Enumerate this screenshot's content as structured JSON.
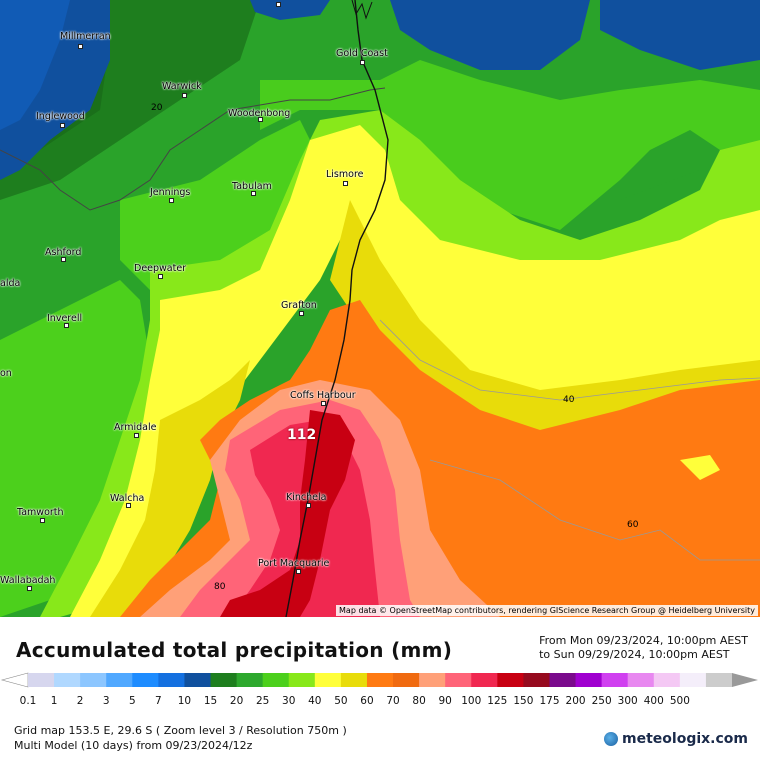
{
  "map": {
    "towns": [
      {
        "name": "Millmerran"
      },
      {
        "name": "Gold Coast"
      },
      {
        "name": "Warwick"
      },
      {
        "name": "Inglewood"
      },
      {
        "name": "Woodenbong"
      },
      {
        "name": "Lismore"
      },
      {
        "name": "Jennings"
      },
      {
        "name": "Tabulam"
      },
      {
        "name": "Ashford"
      },
      {
        "name": "Deepwater"
      },
      {
        "name": "alda"
      },
      {
        "name": "Grafton"
      },
      {
        "name": "Inverell"
      },
      {
        "name": "on"
      },
      {
        "name": "Coffs Harbour"
      },
      {
        "name": "Armidale"
      },
      {
        "name": "Kinchela"
      },
      {
        "name": "Walcha"
      },
      {
        "name": "Tamworth"
      },
      {
        "name": "Port Macquarie"
      },
      {
        "name": "Wallabadah"
      }
    ],
    "contour_labels": [
      "20",
      "40",
      "60",
      "80"
    ],
    "max_value": "112",
    "attribution": "Map data © OpenStreetMap contributors, rendering GIScience Research Group @ Heidelberg University"
  },
  "title": "Accumulated total precipitation (mm)",
  "period": {
    "from": "From Mon 09/23/2024, 10:00pm AEST",
    "to": "to Sun 09/29/2024, 10:00pm AEST"
  },
  "legend": {
    "values": [
      "0.1",
      "1",
      "2",
      "3",
      "5",
      "7",
      "10",
      "15",
      "20",
      "25",
      "30",
      "40",
      "50",
      "60",
      "70",
      "80",
      "90",
      "100",
      "125",
      "150",
      "175",
      "200",
      "250",
      "300",
      "400",
      "500"
    ],
    "colors": [
      "#d6d6ee",
      "#b0d8ff",
      "#8cc6ff",
      "#50a8ff",
      "#1e8cff",
      "#1470e0",
      "#10509e",
      "#1e7e1e",
      "#2ea82e",
      "#4cd01c",
      "#88e81a",
      "#ffff3a",
      "#e8dc0a",
      "#ff7a12",
      "#f06a10",
      "#ffa078",
      "#ff6478",
      "#f02850",
      "#c80012",
      "#960a1e",
      "#7a0a8c",
      "#a000d0",
      "#d040f0",
      "#e888f0",
      "#f4c8f4",
      "#f4eefa",
      "#cccccc"
    ]
  },
  "info": {
    "line1": "Grid map 153.5 E, 29.6 S ( Zoom level 3 / Resolution 750m )",
    "line2": "Multi Model (10 days) from 09/23/2024/12z"
  },
  "brand": "meteologix.com"
}
